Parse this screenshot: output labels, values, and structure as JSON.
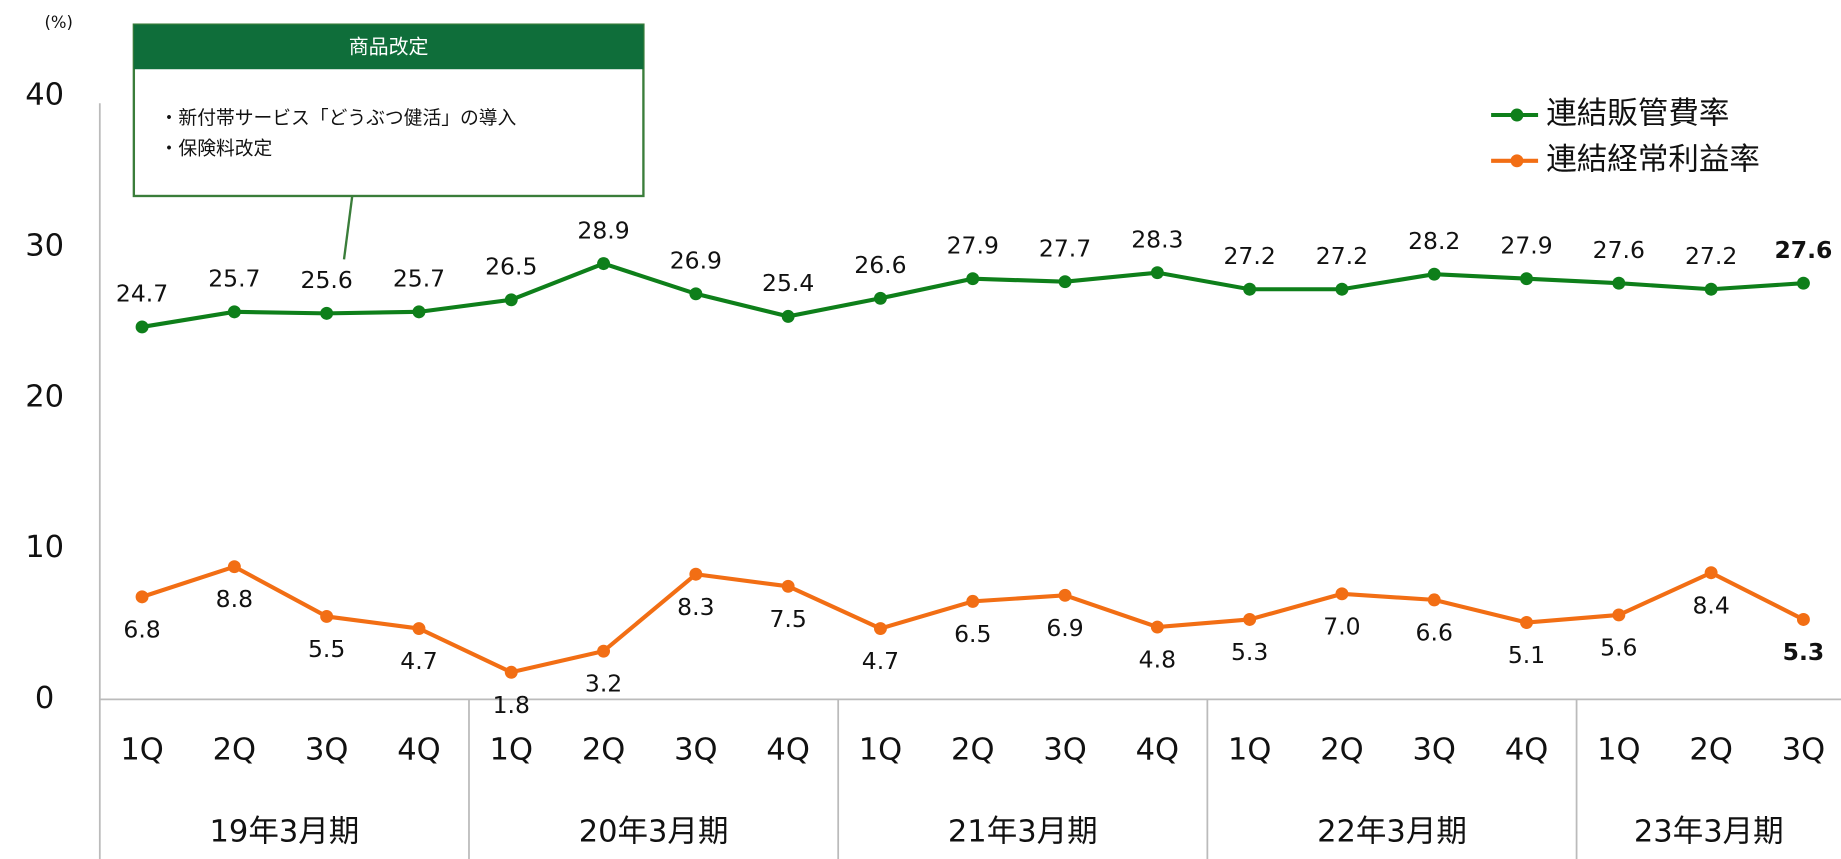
{
  "chart_data": {
    "type": "line",
    "unit_label": "(%)",
    "groups": [
      {
        "label": "19年3月期",
        "categories": [
          "1Q",
          "2Q",
          "3Q",
          "4Q"
        ]
      },
      {
        "label": "20年3月期",
        "categories": [
          "1Q",
          "2Q",
          "3Q",
          "4Q"
        ]
      },
      {
        "label": "21年3月期",
        "categories": [
          "1Q",
          "2Q",
          "3Q",
          "4Q"
        ]
      },
      {
        "label": "22年3月期",
        "categories": [
          "1Q",
          "2Q",
          "3Q",
          "4Q"
        ]
      },
      {
        "label": "23年3月期",
        "categories": [
          "1Q",
          "2Q",
          "3Q"
        ]
      }
    ],
    "series": [
      {
        "name": "連結販管費率",
        "color": "#0e7f1a",
        "values": [
          24.7,
          25.7,
          25.6,
          25.7,
          26.5,
          28.9,
          26.9,
          25.4,
          26.6,
          27.9,
          27.7,
          28.3,
          27.2,
          27.2,
          28.2,
          27.9,
          27.6,
          27.2,
          27.6
        ]
      },
      {
        "name": "連結経常利益率",
        "color": "#f26e14",
        "values": [
          6.8,
          8.8,
          5.5,
          4.7,
          1.8,
          3.2,
          8.3,
          7.5,
          4.7,
          6.5,
          6.9,
          4.8,
          5.3,
          7.0,
          6.6,
          5.1,
          5.6,
          8.4,
          5.3
        ],
        "value_labels": [
          "6.8",
          "8.8",
          "5.5",
          "4.7",
          "1.8",
          "3.2",
          "8.3",
          "7.5",
          "4.7",
          "6.5",
          "6.9",
          "4.8",
          "5.3",
          "7.0",
          "6.6",
          "5.1",
          "5.6",
          "8.4",
          "5.3"
        ]
      }
    ],
    "ylim": [
      0,
      40
    ],
    "yticks": [
      0,
      10,
      20,
      30,
      40
    ],
    "grid": false,
    "legend": "top-right",
    "annotation": {
      "title": "商品改定",
      "lines": [
        "・新付帯サービス「どうぶつ健活」の導入",
        "・保険料改定"
      ]
    }
  }
}
